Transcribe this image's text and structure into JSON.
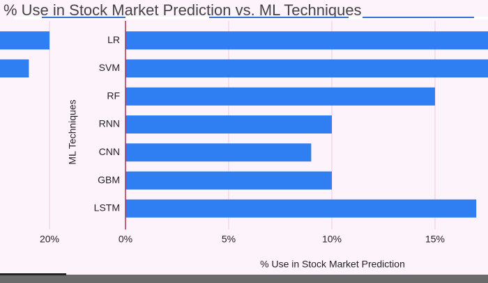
{
  "chart_data": {
    "type": "bar",
    "orientation": "horizontal",
    "title": "% Use in Stock Market Prediction vs. ML Techniques",
    "xlabel": "% Use in Stock Market Prediction",
    "ylabel": "ML Techniques",
    "categories": [
      "LR",
      "SVM",
      "RF",
      "RNN",
      "CNN",
      "GBM",
      "LSTM"
    ],
    "values": [
      20,
      19,
      15,
      10,
      9,
      10,
      17
    ],
    "color": "#2f7ef2",
    "xlim": [
      0,
      20
    ],
    "xticks": [
      {
        "value": 0,
        "label": "0%"
      },
      {
        "value": 5,
        "label": "5%"
      },
      {
        "value": 10,
        "label": "10%"
      },
      {
        "value": 15,
        "label": "15%"
      },
      {
        "value": 20,
        "label": "20%"
      }
    ],
    "grid": true
  }
}
